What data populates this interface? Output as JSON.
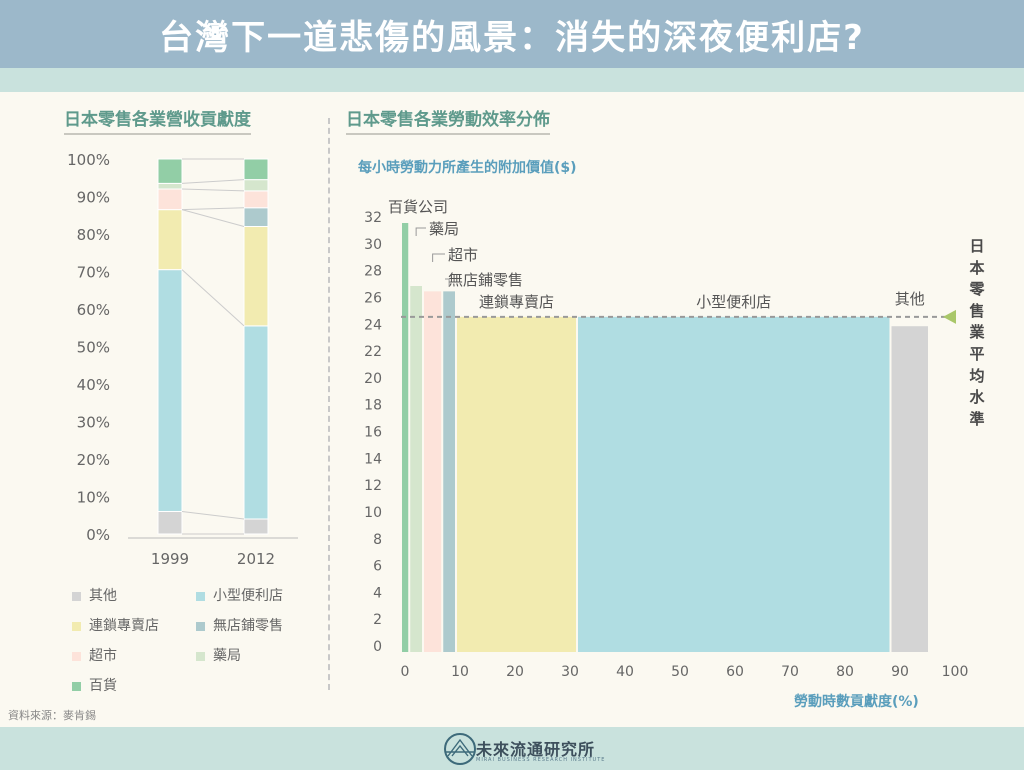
{
  "title": "台灣下一道悲傷的風景：消失的深夜便利店?",
  "chart_data": [
    {
      "type": "bar",
      "stacked": true,
      "title": "日本零售各業營收貢獻度",
      "categories": [
        "1999",
        "2012"
      ],
      "ylim": [
        0,
        100
      ],
      "yticks": [
        "0%",
        "10%",
        "20%",
        "30%",
        "40%",
        "50%",
        "60%",
        "70%",
        "80%",
        "90%",
        "100%"
      ],
      "series": [
        {
          "name": "其他",
          "color": "#d4d4d4",
          "values": [
            6,
            4
          ]
        },
        {
          "name": "小型便利店",
          "color": "#b0dde2",
          "values": [
            64.5,
            51.5
          ]
        },
        {
          "name": "連鎖專賣店",
          "color": "#f2ebb0",
          "values": [
            16,
            26.5
          ]
        },
        {
          "name": "無店鋪零售",
          "color": "#adcacd",
          "values": [
            0,
            5
          ]
        },
        {
          "name": "超市",
          "color": "#fde3da",
          "values": [
            5.5,
            4.5
          ]
        },
        {
          "name": "藥局",
          "color": "#d5e6cd",
          "values": [
            1.5,
            3
          ]
        },
        {
          "name": "百貨",
          "color": "#92cea6",
          "values": [
            6.5,
            5.5
          ]
        }
      ]
    },
    {
      "type": "bar",
      "variable_width": true,
      "title": "日本零售各業勞動效率分佈",
      "ylabel": "每小時勞動力所產生的附加價值($)",
      "xlabel": "勞動時數貢獻度(%)",
      "xlim": [
        0,
        100
      ],
      "ylim": [
        0,
        32
      ],
      "xticks": [
        0,
        10,
        20,
        30,
        40,
        50,
        60,
        70,
        80,
        90,
        100
      ],
      "yticks": [
        0,
        2,
        4,
        6,
        8,
        10,
        12,
        14,
        16,
        18,
        20,
        22,
        24,
        26,
        28,
        30,
        32
      ],
      "bars": [
        {
          "name": "百貨公司",
          "color": "#92cea6",
          "x_start": 0,
          "x_end": 1.5,
          "value": 32
        },
        {
          "name": "藥局",
          "color": "#d5e6cd",
          "x_start": 1.5,
          "x_end": 4,
          "value": 27.3
        },
        {
          "name": "超市",
          "color": "#fde3da",
          "x_start": 4,
          "x_end": 7.5,
          "value": 26.9
        },
        {
          "name": "無店鋪零售",
          "color": "#adcacd",
          "x_start": 7.5,
          "x_end": 10,
          "value": 26.9
        },
        {
          "name": "連鎖專賣店",
          "color": "#f2ebb0",
          "x_start": 10,
          "x_end": 32,
          "value": 25
        },
        {
          "name": "小型便利店",
          "color": "#b0dde2",
          "x_start": 32,
          "x_end": 89,
          "value": 25
        },
        {
          "name": "其他",
          "color": "#d4d4d4",
          "x_start": 89,
          "x_end": 96,
          "value": 24.3
        }
      ],
      "reference_line": {
        "label": "日本零售業平均水準",
        "value": 25
      }
    }
  ],
  "legend": [
    {
      "label": "其他",
      "color": "#d4d4d4"
    },
    {
      "label": "小型便利店",
      "color": "#b0dde2"
    },
    {
      "label": "連鎖專賣店",
      "color": "#f2ebb0"
    },
    {
      "label": "無店鋪零售",
      "color": "#adcacd"
    },
    {
      "label": "超市",
      "color": "#fde3da"
    },
    {
      "label": "藥局",
      "color": "#d5e6cd"
    },
    {
      "label": "百貨",
      "color": "#92cea6"
    }
  ],
  "source": "資料來源：麥肯錫",
  "brand": {
    "name": "未來流通研究所",
    "tagline": "MIRAI BUSINESS RESEARCH INSTITUTE"
  }
}
